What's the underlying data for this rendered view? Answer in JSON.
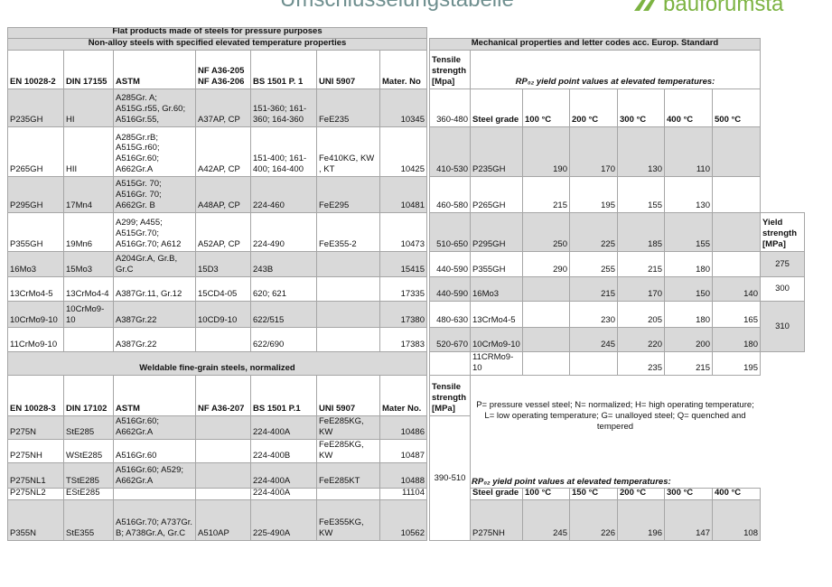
{
  "header": {
    "title": "Umschlüsselungstabelle",
    "logo": "bauforumsta"
  },
  "table1": {
    "title": "Flat products made of steels for pressure purposes",
    "subtitle": "Non-alloy steels with specified elevated temperature properties",
    "columns": [
      "EN 10028-2",
      "DIN 17155",
      "ASTM",
      "NF A36-205 NF A36-206",
      "BS 1501 P. 1",
      "UNI 5907",
      "Mater. No"
    ],
    "rows": [
      [
        "P235GH",
        "HI",
        "A285Gr. A; A515G.r55, Gr.60; A516Gr.55,",
        "A37AP, CP",
        "151-360; 161-360; 164-360",
        "FeE235",
        10345
      ],
      [
        "P265GH",
        "HII",
        "A285Gr.rB; A515G.r60; A516Gr.60; A662Gr.A",
        "A42AP, CP",
        "151-400; 161-400; 164-400",
        "Fe410KG, KW , KT",
        10425
      ],
      [
        "P295GH",
        "17Mn4",
        "A515Gr. 70; A516Gr. 70; A662Gr. B",
        "A48AP, CP",
        "224-460",
        "FeE295",
        10481
      ],
      [
        "P355GH",
        "19Mn6",
        "A299; A455; A515Gr.70; A516Gr.70; A612",
        "A52AP, CP",
        "224-490",
        "FeE355-2",
        10473
      ],
      [
        "16Mo3",
        "15Mo3",
        "A204Gr.A, Gr.B, Gr.C",
        "15D3",
        "243B",
        null,
        15415
      ],
      [
        "13CrMo4-5",
        "13CrMo4-4",
        "A387Gr.11, Gr.12",
        "15CD4-05",
        "620; 621",
        null,
        17335
      ],
      [
        "10CrMo9-10",
        "10CrMo9-10",
        "A387Gr.22",
        "10CD9-10",
        "622/515",
        null,
        17380
      ],
      [
        "11CrMo9-10",
        null,
        "A387Gr.22",
        null,
        "622/690",
        null,
        17383
      ]
    ]
  },
  "table2": {
    "title": "Weldable fine-grain steels, normalized",
    "columns": [
      "EN 10028-3",
      "DIN 17102",
      "ASTM",
      "NF A36-207",
      "BS 1501 P.1",
      "UNI 5907",
      "Mater No."
    ],
    "rows": [
      [
        "P275N",
        "StE285",
        "A516Gr.60; A662Gr.A",
        null,
        "224-400A",
        "FeE285KG, KW",
        10486
      ],
      [
        "P275NH",
        "WStE285",
        "A516Gr.60",
        null,
        "224-400B",
        "FeE285KG, KW",
        10487
      ],
      [
        "P275NL1",
        "TStE285",
        "A516Gr.60; A529; A662Gr.A",
        null,
        "224-400A",
        "FeE285KT",
        10488
      ],
      [
        "P275NL2",
        "EStE285",
        null,
        null,
        "224-400A",
        null,
        11104
      ],
      [
        "P355N",
        "StE355",
        "A516Gr.70; A737Gr. B; A738Gr.A, Gr.C",
        "A510AP",
        "225-490A",
        "FeE355KG, KW",
        10562
      ]
    ]
  },
  "mech": {
    "title": "Mechanical properties and letter codes acc. Europ. Standard",
    "tensile_header": "Tensile strength [Mpa]",
    "caption": "RP₀₂ yield point values at elevated temperatures:",
    "columns": [
      "Steel grade",
      "100 °C",
      "200 °C",
      "300 °C",
      "400 °C",
      "500 °C"
    ],
    "tensile": [
      "360-480",
      "410-530",
      "460-580",
      "510-650",
      "440-590",
      "440-590",
      "480-630",
      "520-670"
    ],
    "grades": [
      "P235GH",
      "P265GH",
      "P295GH",
      "P355GH",
      "16Mo3",
      "13CrMo4-5",
      "10CrMo9-10",
      "11CRMo9-10"
    ],
    "values": [
      [
        190,
        170,
        130,
        110,
        null
      ],
      [
        215,
        195,
        155,
        130,
        null
      ],
      [
        250,
        225,
        185,
        155,
        null
      ],
      [
        290,
        255,
        215,
        180,
        null
      ],
      [
        null,
        215,
        170,
        150,
        140
      ],
      [
        null,
        230,
        205,
        180,
        165
      ],
      [
        null,
        245,
        220,
        200,
        180
      ],
      [
        null,
        null,
        235,
        215,
        195
      ]
    ],
    "yield_header": "Yield strength [MPa]",
    "yield": [
      275,
      300,
      310
    ]
  },
  "mech2": {
    "tensile_header": "Tensile strength [MPa]",
    "note": "P= pressure vessel steel; N= normalized; H= high operating temperature; L= low operating temperature; G= unalloyed steel; Q= quenched and tempered",
    "tensile": "390-510",
    "caption": "RP₀₂ yield point values at elevated temperatures:",
    "columns": [
      "Steel grade",
      "100 °C",
      "150 °C",
      "200 °C",
      "300 °C",
      "400 °C"
    ],
    "grade": "P275NH",
    "values": [
      245,
      226,
      196,
      147,
      108
    ]
  }
}
